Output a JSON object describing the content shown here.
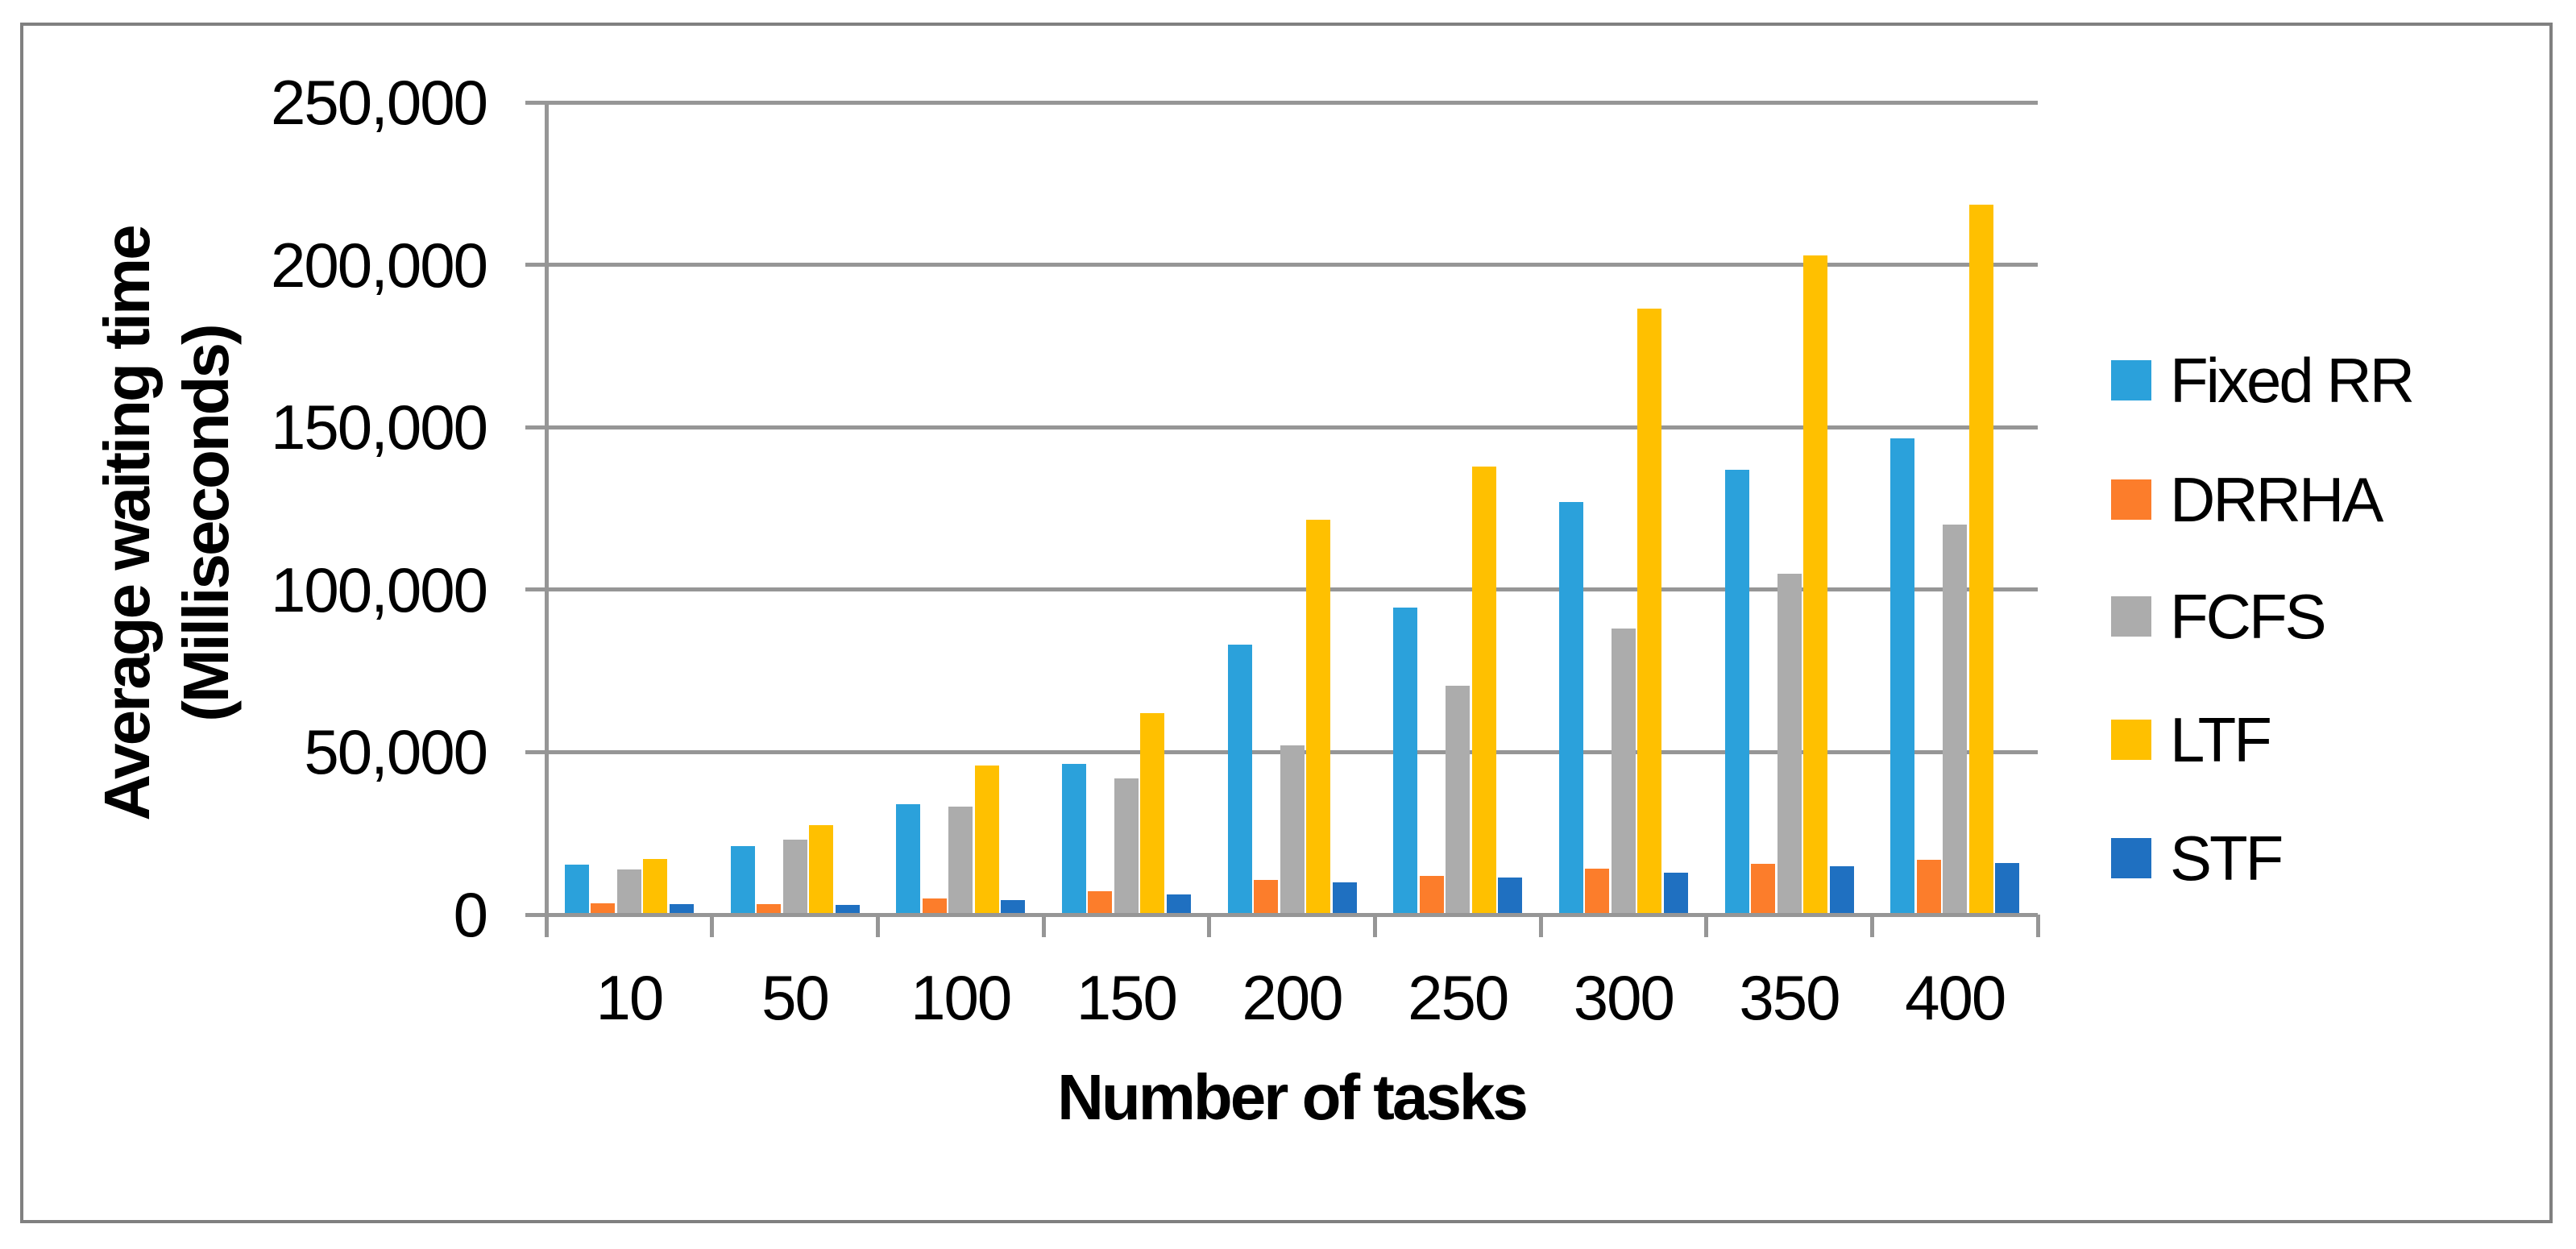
{
  "chart_data": {
    "type": "bar",
    "title": "",
    "xlabel": "Number of tasks",
    "ylabel_line1": "Average waiting time",
    "ylabel_line2": "(Milliseconds)",
    "categories": [
      "10",
      "50",
      "100",
      "150",
      "200",
      "250",
      "300",
      "350",
      "400"
    ],
    "series": [
      {
        "name": "Fixed RR",
        "color": "#2BA1DB",
        "values": [
          15500,
          21000,
          34000,
          46500,
          83000,
          94500,
          127000,
          137000,
          146500
        ]
      },
      {
        "name": "DRRHA",
        "color": "#FC7D2B",
        "values": [
          3500,
          3300,
          5000,
          7200,
          10700,
          11900,
          14100,
          15600,
          16900
        ]
      },
      {
        "name": "FCFS",
        "color": "#ACACAC",
        "values": [
          14000,
          23000,
          33200,
          42000,
          52000,
          70500,
          88000,
          105000,
          120000
        ]
      },
      {
        "name": "LTF",
        "color": "#FFC000",
        "values": [
          17200,
          27500,
          45900,
          62000,
          121500,
          138000,
          186500,
          203000,
          218500
        ]
      },
      {
        "name": "STF",
        "color": "#1F70C1",
        "values": [
          3300,
          3000,
          4500,
          6300,
          10000,
          11500,
          12900,
          14900,
          15900
        ]
      }
    ],
    "y_ticks": [
      "0",
      "50,000",
      "100,000",
      "150,000",
      "200,000",
      "250,000"
    ],
    "ylim": [
      0,
      250000
    ],
    "grid": true,
    "legend_position": "right"
  },
  "colors": {
    "background": "#FFFFFF",
    "gridline": "#969696",
    "axis_line": "#969696",
    "outer_border": "#808080",
    "text": "#000000"
  }
}
